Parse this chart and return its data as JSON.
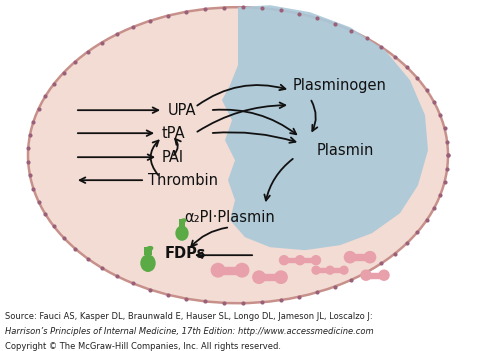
{
  "bg_color": "#ffffff",
  "outer_ellipse_color": "#f2dcd4",
  "outer_ellipse_edge": "#c8908a",
  "blue_region_color": "#aac8d8",
  "dot_color": "#9a607a",
  "text_color": "#111111",
  "arrow_color": "#111111",
  "green_color": "#5aaa45",
  "pink_fdp_color": "#e8a0aa",
  "plasminogen_text": "Plasminogen",
  "plasmin_text": "Plasmin",
  "a2pi_text": "α₂PI·Plasmin",
  "fdps_text": "FDPs",
  "upa_text": "UPA",
  "tpa_text": "tPA",
  "pai_text": "PAI",
  "thrombin_text": "Thrombin",
  "source1": "Source: Fauci AS, Kasper DL, Braunwald E, Hauser SL, Longo DL, Jameson JL, Loscalzo J:",
  "source2": "Harrison’s Principles of Internal Medicine, 17th Edition: http://www.accessmedicine.com",
  "copyright": "Copyright © The McGraw-Hill Companies, Inc. All rights reserved."
}
